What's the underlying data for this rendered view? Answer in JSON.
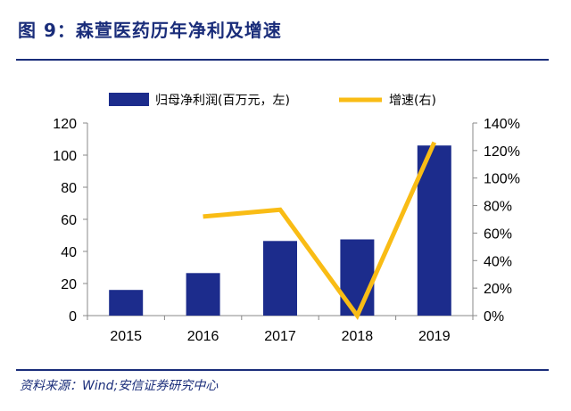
{
  "figure_title": "图 9：森萱医药历年净利及增速",
  "source": "资料来源：Wind;安信证券研究中心",
  "colors": {
    "bar": "#1c2c8c",
    "line": "#f9bc15",
    "title": "#1a2d7a"
  },
  "chart_data": {
    "type": "bar+line",
    "categories": [
      "2015",
      "2016",
      "2017",
      "2018",
      "2019"
    ],
    "series": [
      {
        "name": "归母净利润(百万元，左)",
        "type": "bar",
        "axis": "left",
        "values": [
          16,
          26.5,
          46.5,
          47.5,
          106
        ]
      },
      {
        "name": "增速(右)",
        "type": "line",
        "axis": "right",
        "values": [
          null,
          72,
          77,
          0,
          126
        ]
      }
    ],
    "y_left": {
      "min": 0,
      "max": 120,
      "step": 20,
      "ticks": [
        "0",
        "20",
        "40",
        "60",
        "80",
        "100",
        "120"
      ]
    },
    "y_right": {
      "min": 0,
      "max": 140,
      "step": 20,
      "ticks": [
        "0%",
        "20%",
        "40%",
        "60%",
        "80%",
        "100%",
        "120%",
        "140%"
      ]
    },
    "legend_position": "top",
    "grid": false
  }
}
